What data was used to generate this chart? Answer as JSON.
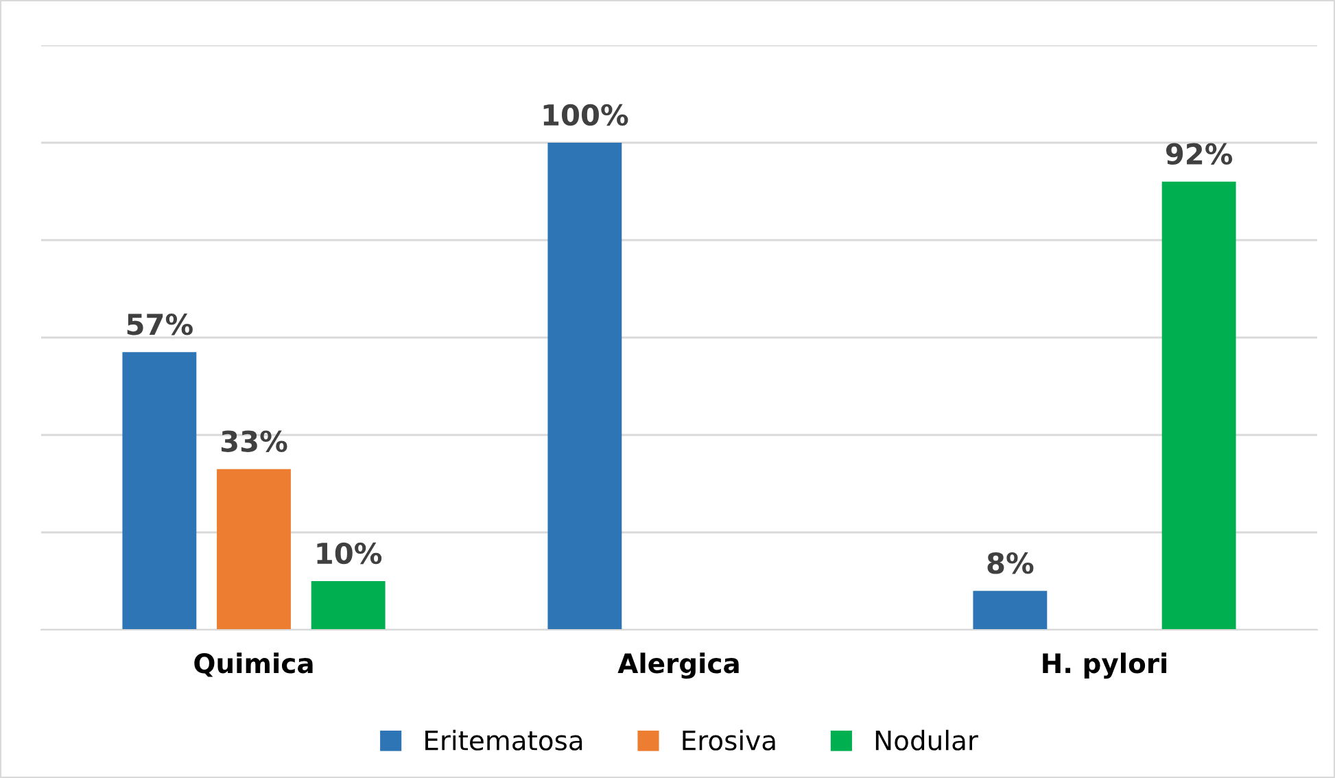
{
  "chart_data": {
    "type": "bar",
    "categories": [
      "Quimica",
      "Alergica",
      "H. pylori"
    ],
    "series": [
      {
        "name": "Eritematosa",
        "color": "#2e75b6",
        "values": [
          57,
          100,
          8
        ],
        "value_labels": [
          "57%",
          "100%",
          "8%"
        ]
      },
      {
        "name": "Erosiva",
        "color": "#ed7d31",
        "values": [
          33,
          null,
          null
        ],
        "value_labels": [
          "33%",
          null,
          null
        ]
      },
      {
        "name": "Nodular",
        "color": "#00b050",
        "values": [
          10,
          null,
          92
        ],
        "value_labels": [
          "10%",
          null,
          "92%"
        ]
      }
    ],
    "ylim": [
      0,
      120
    ],
    "yticks": [
      {
        "value": 0,
        "label": null
      },
      {
        "value": 20,
        "label": null
      },
      {
        "value": 40,
        "label": null
      },
      {
        "value": 60,
        "label": null
      },
      {
        "value": 80,
        "label": null
      },
      {
        "value": 100,
        "label": null
      },
      {
        "value": 120,
        "label": null
      }
    ],
    "grid": "y",
    "legend": "bottom",
    "tick_labels": "x"
  }
}
